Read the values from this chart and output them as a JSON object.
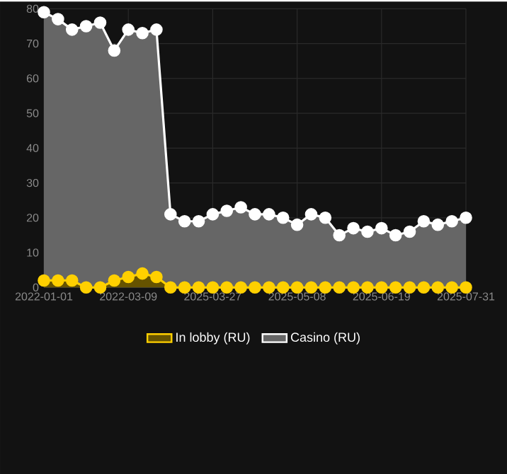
{
  "chart_data": {
    "type": "area",
    "categories": [
      "2022-01-01",
      null,
      null,
      null,
      null,
      null,
      "2022-03-09",
      null,
      null,
      null,
      null,
      null,
      "2025-03-27",
      null,
      null,
      null,
      null,
      null,
      "2025-05-08",
      null,
      null,
      null,
      null,
      null,
      "2025-06-19",
      null,
      null,
      null,
      null,
      null,
      "2025-07-31"
    ],
    "series": [
      {
        "name": "In lobby (RU)",
        "color": "#ffd000",
        "values": [
          2,
          2,
          2,
          0,
          0,
          2,
          3,
          4,
          3,
          0,
          0,
          0,
          0,
          0,
          0,
          0,
          0,
          0,
          0,
          0,
          0,
          0,
          0,
          0,
          0,
          0,
          0,
          0,
          0,
          0,
          0
        ]
      },
      {
        "name": "Casino (RU)",
        "color": "#ffffff",
        "values": [
          79,
          77,
          74,
          75,
          76,
          68,
          74,
          73,
          74,
          21,
          19,
          19,
          21,
          22,
          23,
          21,
          21,
          20,
          18,
          21,
          20,
          15,
          17,
          16,
          17,
          15,
          16,
          19,
          18,
          19,
          20
        ]
      }
    ],
    "ylim": [
      0,
      80
    ],
    "yticks": [
      0,
      10,
      20,
      30,
      40,
      50,
      60,
      70,
      80
    ],
    "grid": true,
    "legend": "bottom",
    "marker": "circle"
  }
}
